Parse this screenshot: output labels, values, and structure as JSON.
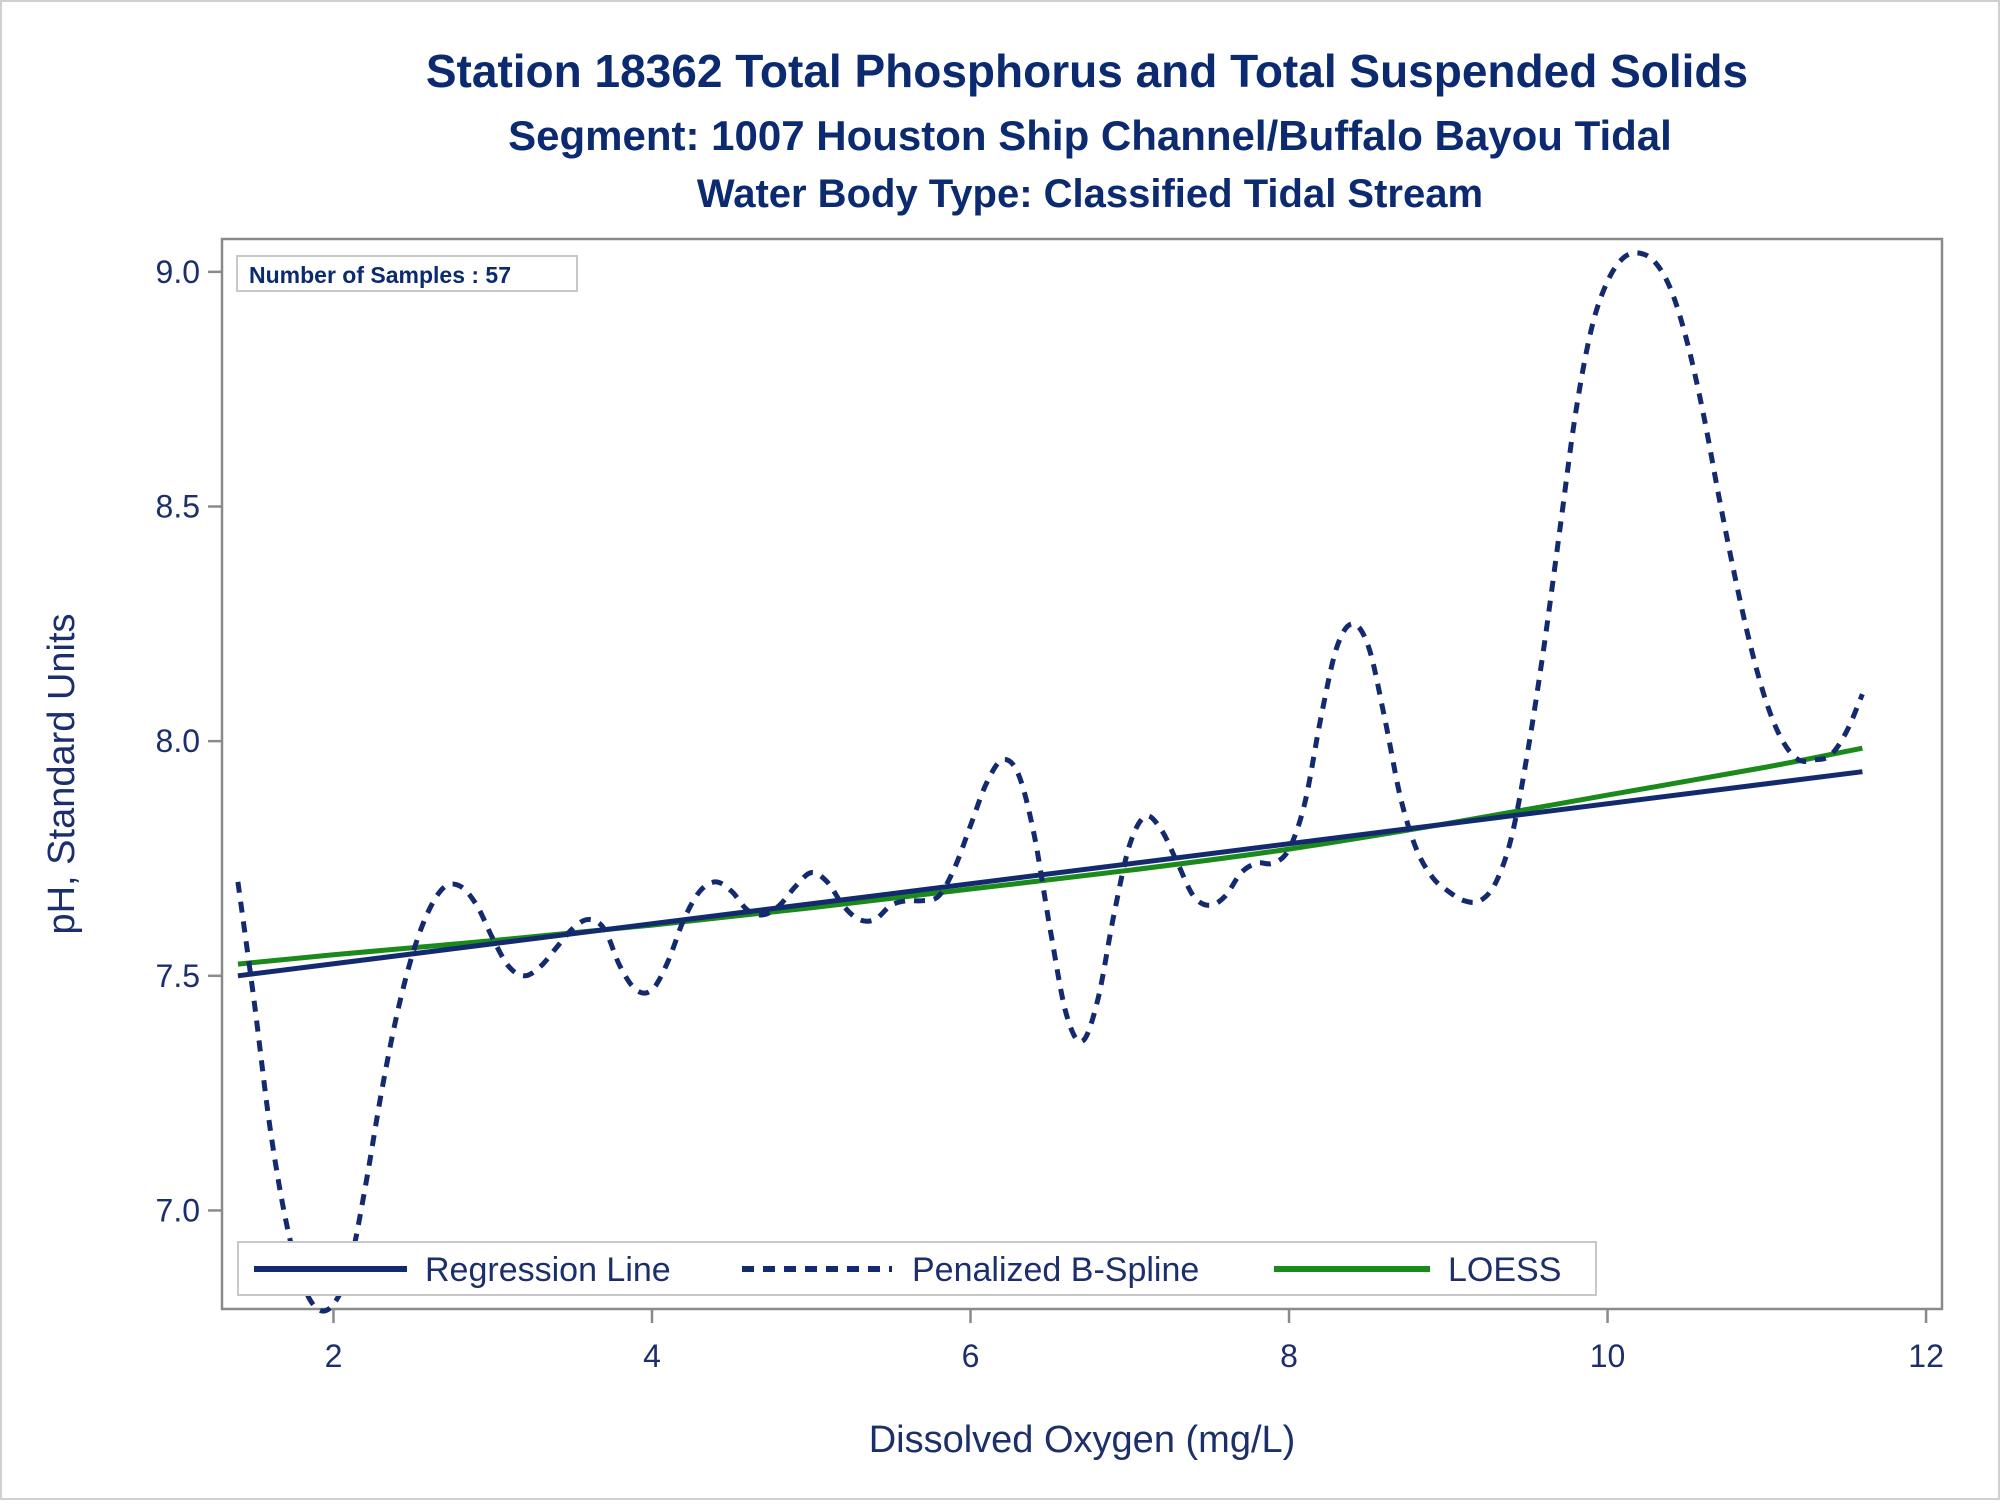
{
  "titles": {
    "line1": "Station 18362  Total Phosphorus and Total Suspended Solids",
    "line2": "Segment: 1007  Houston Ship Channel/Buffalo Bayou Tidal",
    "line3": "Water Body Type: Classified Tidal Stream"
  },
  "inset": {
    "label": "Number of Samples : 57"
  },
  "legend": {
    "items": [
      {
        "label": "Regression Line",
        "color": "#142a6e",
        "style": "solid"
      },
      {
        "label": "Penalized B-Spline",
        "color": "#142a6e",
        "style": "dashed"
      },
      {
        "label": "LOESS",
        "color": "#1a8a1a",
        "style": "solid"
      }
    ]
  },
  "colors": {
    "title": "#0b2a6f",
    "axis": "#1c2f6b",
    "frame": "#8a8a8a",
    "navy": "#142a6e",
    "green": "#1a8a1a"
  },
  "chart_data": {
    "type": "line",
    "title": "Station 18362  Total Phosphorus and Total Suspended Solids",
    "subtitle": "Segment: 1007  Houston Ship Channel/Buffalo Bayou Tidal / Water Body Type: Classified Tidal Stream",
    "xlabel": "Dissolved Oxygen (mg/L)",
    "ylabel": "pH, Standard Units",
    "xlim": [
      1.3,
      12.1
    ],
    "ylim": [
      6.79,
      9.07
    ],
    "x_ticks": [
      {
        "value": 2,
        "label": "2"
      },
      {
        "value": 4,
        "label": "4"
      },
      {
        "value": 6,
        "label": "6"
      },
      {
        "value": 8,
        "label": "8"
      },
      {
        "value": 10,
        "label": "10"
      },
      {
        "value": 12,
        "label": "12"
      }
    ],
    "y_ticks": [
      {
        "value": 7.0,
        "label": "7.0"
      },
      {
        "value": 7.5,
        "label": "7.5"
      },
      {
        "value": 8.0,
        "label": "8.0"
      },
      {
        "value": 8.5,
        "label": "8.5"
      },
      {
        "value": 9.0,
        "label": "9.0"
      }
    ],
    "grid": false,
    "legend_position": "bottom-inside",
    "series": [
      {
        "name": "Regression Line",
        "color": "#142a6e",
        "style": "solid",
        "x": [
          1.4,
          11.6
        ],
        "y": [
          7.5,
          7.935
        ]
      },
      {
        "name": "Penalized B-Spline",
        "color": "#142a6e",
        "style": "dashed",
        "x": [
          1.4,
          1.5,
          1.6,
          1.7,
          1.8,
          1.9,
          2.0,
          2.1,
          2.2,
          2.3,
          2.4,
          2.5,
          2.6,
          2.7,
          2.8,
          2.9,
          3.0,
          3.1,
          3.2,
          3.3,
          3.4,
          3.5,
          3.6,
          3.7,
          3.8,
          3.9,
          4.0,
          4.1,
          4.2,
          4.3,
          4.4,
          4.5,
          4.6,
          4.7,
          4.8,
          4.9,
          5.0,
          5.1,
          5.2,
          5.3,
          5.4,
          5.5,
          5.6,
          5.7,
          5.8,
          5.9,
          6.0,
          6.1,
          6.2,
          6.3,
          6.4,
          6.5,
          6.6,
          6.7,
          6.8,
          6.9,
          7.0,
          7.1,
          7.2,
          7.3,
          7.4,
          7.5,
          7.6,
          7.7,
          7.8,
          7.9,
          8.0,
          8.1,
          8.2,
          8.3,
          8.4,
          8.5,
          8.6,
          8.7,
          8.8,
          8.9,
          9.0,
          9.1,
          9.2,
          9.3,
          9.4,
          9.5,
          9.6,
          9.7,
          9.8,
          9.9,
          10.0,
          10.1,
          10.2,
          10.3,
          10.4,
          10.5,
          10.6,
          10.7,
          10.8,
          10.9,
          11.0,
          11.1,
          11.2,
          11.3,
          11.4,
          11.5,
          11.6
        ],
        "y": [
          7.7,
          7.45,
          7.18,
          6.98,
          6.85,
          6.79,
          6.8,
          6.88,
          7.05,
          7.25,
          7.42,
          7.55,
          7.64,
          7.69,
          7.69,
          7.65,
          7.58,
          7.52,
          7.5,
          7.52,
          7.56,
          7.6,
          7.62,
          7.6,
          7.52,
          7.47,
          7.47,
          7.53,
          7.62,
          7.68,
          7.7,
          7.68,
          7.64,
          7.63,
          7.65,
          7.69,
          7.72,
          7.7,
          7.65,
          7.62,
          7.62,
          7.65,
          7.66,
          7.66,
          7.67,
          7.73,
          7.82,
          7.91,
          7.96,
          7.93,
          7.8,
          7.6,
          7.42,
          7.36,
          7.45,
          7.63,
          7.78,
          7.84,
          7.81,
          7.74,
          7.67,
          7.65,
          7.67,
          7.72,
          7.74,
          7.74,
          7.77,
          7.87,
          8.05,
          8.2,
          8.25,
          8.2,
          8.05,
          7.88,
          7.77,
          7.71,
          7.68,
          7.66,
          7.66,
          7.7,
          7.8,
          7.98,
          8.2,
          8.45,
          8.7,
          8.88,
          8.98,
          9.03,
          9.04,
          9.02,
          8.96,
          8.85,
          8.7,
          8.52,
          8.35,
          8.2,
          8.08,
          8.0,
          7.96,
          7.96,
          7.97,
          8.02,
          8.1
        ]
      },
      {
        "name": "LOESS",
        "color": "#1a8a1a",
        "style": "solid",
        "x": [
          1.4,
          2,
          3,
          4,
          5,
          6,
          7,
          8,
          9,
          10,
          11,
          11.6
        ],
        "y": [
          7.525,
          7.545,
          7.575,
          7.608,
          7.645,
          7.685,
          7.725,
          7.77,
          7.825,
          7.885,
          7.945,
          7.985
        ]
      }
    ]
  }
}
